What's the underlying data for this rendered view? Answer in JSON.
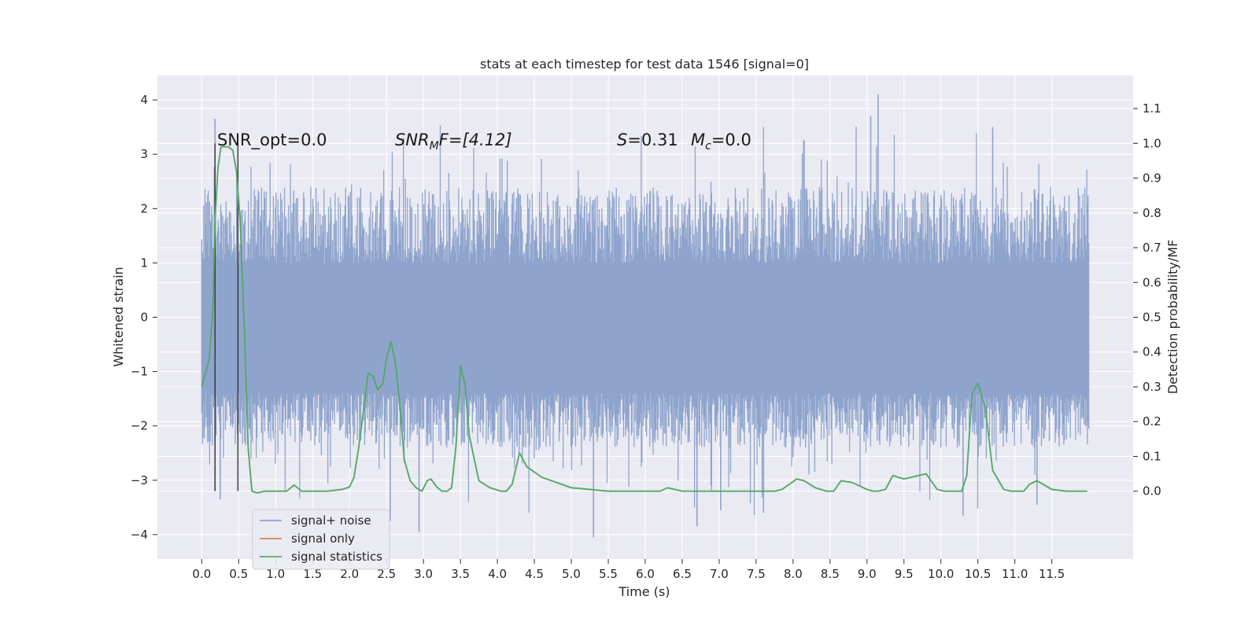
{
  "chart_data": {
    "type": "line",
    "title": "stats at each timestep for test data 1546 [signal=0]",
    "xlabel": "Time (s)",
    "ylabel": "Whitened strain",
    "y2label": "Detection probability/MF",
    "xlim": [
      -0.6,
      12.6
    ],
    "ylim": [
      -4.45,
      4.45
    ],
    "y2lim": [
      -0.195,
      1.195
    ],
    "xticks": [
      0.0,
      0.5,
      1.0,
      1.5,
      2.0,
      2.5,
      3.0,
      3.5,
      4.0,
      4.5,
      5.0,
      5.5,
      6.0,
      6.5,
      7.0,
      7.5,
      8.0,
      8.5,
      9.0,
      9.5,
      10.0,
      10.5,
      11.0,
      11.5
    ],
    "xtick_labels": [
      "0.0",
      "0.5",
      "1.0",
      "1.5",
      "2.0",
      "2.5",
      "3.0",
      "3.5",
      "4.0",
      "4.5",
      "5.0",
      "5.5",
      "6.0",
      "6.5",
      "7.0",
      "7.5",
      "8.0",
      "8.5",
      "9.0",
      "9.5",
      "10.0",
      "10.5",
      "11.0",
      "11.5"
    ],
    "yticks": [
      -4,
      -3,
      -2,
      -1,
      0,
      1,
      2,
      3,
      4
    ],
    "ytick_labels": [
      "−4",
      "−3",
      "−2",
      "−1",
      "0",
      "1",
      "2",
      "3",
      "4"
    ],
    "y2ticks": [
      0.0,
      0.1,
      0.2,
      0.3,
      0.4,
      0.5,
      0.6,
      0.7,
      0.8,
      0.9,
      1.0,
      1.1
    ],
    "y2tick_labels": [
      "0.0",
      "0.1",
      "0.2",
      "0.3",
      "0.4",
      "0.5",
      "0.6",
      "0.7",
      "0.8",
      "0.9",
      "1.0",
      "1.1"
    ],
    "grid": true,
    "legend_position": "lower-left",
    "annotations": {
      "snr_opt": "SNR_opt=0.0",
      "snr_mf_main": "SNR",
      "snr_mf_sub": "M",
      "snr_mf_rest": "F=[4.12]",
      "s_main": "S",
      "s_rest": "=0.31",
      "mc_main": "M",
      "mc_sub": "c",
      "mc_rest": "=0.0"
    },
    "vlines": {
      "x": [
        0.18,
        0.49
      ],
      "ymin": -3.2,
      "ymax": 3.2,
      "color": "#3a3a3a"
    },
    "series": [
      {
        "name": "signal+ noise",
        "color": "#8fa4cd",
        "axis": "left",
        "kind": "noise",
        "x_range": [
          0.0,
          12.0
        ],
        "envelope": {
          "positive_band": [
            1.0,
            2.4
          ],
          "negative_band": [
            -1.4,
            -2.4
          ],
          "notable_peaks": [
            {
              "x": 0.18,
              "y": 3.65
            },
            {
              "x": 0.25,
              "y": -3.35
            },
            {
              "x": 2.55,
              "y": -3.75
            },
            {
              "x": 2.94,
              "y": -3.95
            },
            {
              "x": 5.3,
              "y": -4.05
            },
            {
              "x": 6.7,
              "y": -3.85
            },
            {
              "x": 7.02,
              "y": -3.55
            },
            {
              "x": 7.6,
              "y": -3.6
            },
            {
              "x": 9.15,
              "y": 4.1
            },
            {
              "x": 9.05,
              "y": 3.7
            },
            {
              "x": 10.3,
              "y": -3.65
            },
            {
              "x": 10.7,
              "y": 3.5
            },
            {
              "x": 11.3,
              "y": -3.45
            }
          ]
        }
      },
      {
        "name": "signal only",
        "color": "#dd8452",
        "axis": "left",
        "x": [],
        "y": []
      },
      {
        "name": "signal statistics",
        "color": "#55a868",
        "axis": "right",
        "x": [
          0.0,
          0.1,
          0.15,
          0.18,
          0.22,
          0.26,
          0.31,
          0.36,
          0.42,
          0.47,
          0.52,
          0.58,
          0.63,
          0.68,
          0.75,
          0.85,
          1.0,
          1.15,
          1.25,
          1.35,
          1.5,
          1.7,
          1.9,
          2.0,
          2.06,
          2.12,
          2.2,
          2.25,
          2.32,
          2.38,
          2.45,
          2.5,
          2.56,
          2.62,
          2.68,
          2.74,
          2.82,
          2.9,
          2.98,
          3.05,
          3.1,
          3.18,
          3.25,
          3.32,
          3.38,
          3.44,
          3.5,
          3.56,
          3.62,
          3.75,
          3.9,
          4.05,
          4.12,
          4.2,
          4.3,
          4.4,
          4.6,
          5.0,
          5.5,
          6.0,
          6.1,
          6.2,
          6.3,
          6.5,
          7.0,
          7.5,
          7.75,
          7.85,
          7.95,
          8.05,
          8.15,
          8.3,
          8.45,
          8.55,
          8.65,
          8.8,
          9.0,
          9.08,
          9.15,
          9.25,
          9.35,
          9.5,
          9.8,
          9.95,
          10.05,
          10.12,
          10.2,
          10.28,
          10.35,
          10.42,
          10.5,
          10.6,
          10.7,
          10.85,
          10.95,
          11.05,
          11.12,
          11.2,
          11.3,
          11.5,
          11.7,
          11.98
        ],
        "y": [
          0.3,
          0.38,
          0.52,
          0.78,
          0.93,
          0.99,
          0.99,
          0.99,
          0.98,
          0.92,
          0.78,
          0.45,
          0.12,
          0.0,
          -0.005,
          0.0,
          0.0,
          0.0,
          0.018,
          0.0,
          0.0,
          0.0,
          0.005,
          0.012,
          0.04,
          0.12,
          0.25,
          0.34,
          0.33,
          0.29,
          0.31,
          0.38,
          0.43,
          0.37,
          0.25,
          0.09,
          0.03,
          0.01,
          0.0,
          0.03,
          0.035,
          0.012,
          0.0,
          0.0,
          0.01,
          0.13,
          0.36,
          0.31,
          0.16,
          0.03,
          0.01,
          0.0,
          0.0,
          0.02,
          0.11,
          0.07,
          0.04,
          0.01,
          0.0,
          0.0,
          0.0,
          0.0,
          0.01,
          0.0,
          0.0,
          0.0,
          0.0,
          0.005,
          0.02,
          0.035,
          0.03,
          0.01,
          0.0,
          0.0,
          0.03,
          0.025,
          0.005,
          0.0,
          0.0,
          0.005,
          0.045,
          0.035,
          0.05,
          0.005,
          0.0,
          0.0,
          0.0,
          0.0,
          0.045,
          0.28,
          0.31,
          0.24,
          0.06,
          0.005,
          0.0,
          0.0,
          0.0,
          0.02,
          0.03,
          0.005,
          0.0,
          0.0
        ]
      }
    ]
  }
}
